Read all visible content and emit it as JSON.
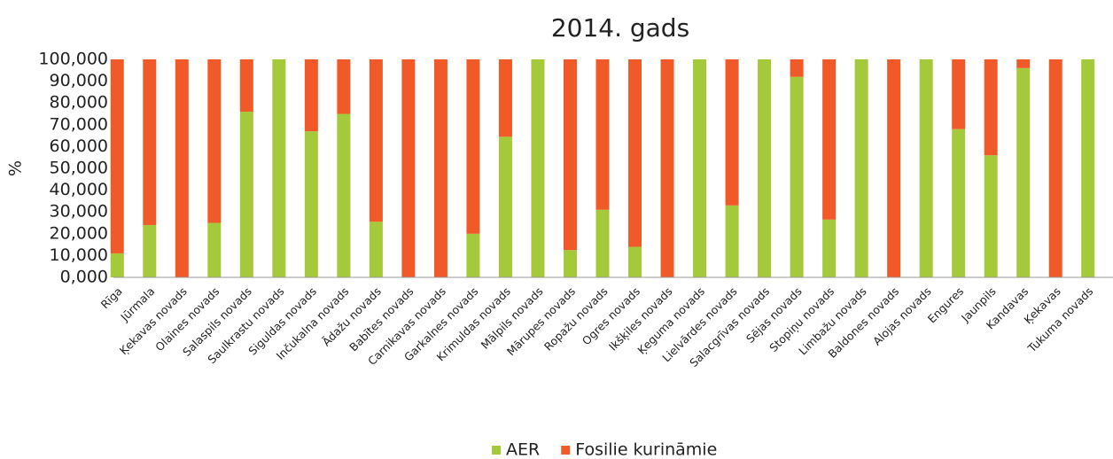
{
  "chart_data": {
    "type": "stacked_bar",
    "title": "2014. gads",
    "y_label": "%",
    "categories": [
      "Rīga",
      "Jūrmala",
      "Ķekavas novads",
      "Olaines novads",
      "Salaspils novads",
      "Saulkrastu novads",
      "Siguldas novads",
      "Inčukalna novads",
      "Ādažu novads",
      "Babītes novads",
      "Carnikavas novads",
      "Garkalnes novads",
      "Krimuldas novads",
      "Mālpils novads",
      "Mārupes novads",
      "Ropažu novads",
      "Ogres novads",
      "Ikšķiles novads",
      "Ķeguma novads",
      "Lielvārdes novads",
      "Salacgrīvas novads",
      "Sējas novads",
      "Stopiņu novads",
      "Limbažu novads",
      "Baldones novads",
      "Alojas novads",
      "Engures",
      "Jaunpils",
      "Kandavas",
      "Ķekavas",
      "Tukuma novads"
    ],
    "series": [
      {
        "name": "AER",
        "color": "#a4c93a",
        "values": [
          11,
          24,
          0,
          25,
          76,
          100,
          67,
          75,
          25.5,
          0,
          0,
          20,
          64.5,
          100,
          12.5,
          31,
          14,
          0,
          100,
          33,
          100,
          92,
          26.5,
          100,
          0,
          100,
          68,
          56,
          96,
          0,
          100
        ]
      },
      {
        "name": "Fosilie kurināmie",
        "color": "#f05a28",
        "values": [
          89,
          76,
          100,
          75,
          24,
          0,
          33,
          25,
          74.5,
          100,
          100,
          80,
          35.5,
          0,
          87.5,
          69,
          86,
          100,
          0,
          67,
          0,
          8,
          73.5,
          0,
          100,
          0,
          32,
          44,
          4,
          100,
          0
        ]
      }
    ],
    "ylim": [
      0,
      100
    ],
    "yticks": [
      {
        "value": 0,
        "label": "0,000"
      },
      {
        "value": 10,
        "label": "10,000"
      },
      {
        "value": 20,
        "label": "20,000"
      },
      {
        "value": 30,
        "label": "30,000"
      },
      {
        "value": 40,
        "label": "40,000"
      },
      {
        "value": 50,
        "label": "50,000"
      },
      {
        "value": 60,
        "label": "60,000"
      },
      {
        "value": 70,
        "label": "70,000"
      },
      {
        "value": 80,
        "label": "80,000"
      },
      {
        "value": 90,
        "label": "90,000"
      },
      {
        "value": 100,
        "label": "100,000"
      }
    ],
    "legend": "bottom"
  }
}
